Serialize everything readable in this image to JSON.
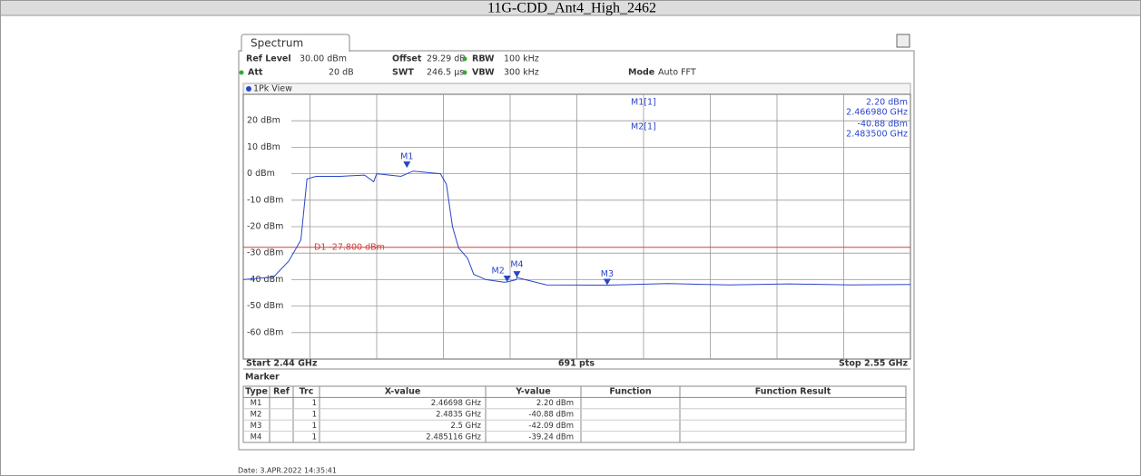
{
  "header": {
    "title": "11G-CDD_Ant4_High_2462"
  },
  "tab": "Spectrum",
  "settings": [
    {
      "label": "Ref Level",
      "value": "30.00 dBm"
    },
    {
      "label": "Offset",
      "value": "29.29 dB"
    },
    {
      "label": "RBW",
      "value": "100 kHz"
    },
    {
      "label": "Att",
      "value": "20 dB"
    },
    {
      "label": "SWT",
      "value": "246.5 µs"
    },
    {
      "label": "VBW",
      "value": "300 kHz"
    },
    {
      "label": "Mode",
      "value": "Auto FFT"
    }
  ],
  "view": "1Pk View",
  "readout": [
    {
      "name": "M1[1]",
      "level": "2.20 dBm",
      "freq": "2.466980 GHz"
    },
    {
      "name": "M2[1]",
      "level": "-40.88 dBm",
      "freq": "2.483500 GHz"
    }
  ],
  "chart_data": {
    "type": "line",
    "xlim": [
      2.44,
      2.55
    ],
    "ylim": [
      -70,
      30
    ],
    "yticks": [
      {
        "value": 20,
        "label": "20 dBm"
      },
      {
        "value": 10,
        "label": "10 dBm"
      },
      {
        "value": 0,
        "label": "0 dBm"
      },
      {
        "value": -10,
        "label": "-10 dBm"
      },
      {
        "value": -20,
        "label": "-20 dBm"
      },
      {
        "value": -30,
        "label": "-30 dBm"
      },
      {
        "value": -40,
        "label": "-40 dBm"
      },
      {
        "value": -50,
        "label": "-50 dBm"
      },
      {
        "value": -60,
        "label": "-60 dBm"
      }
    ],
    "grid": true,
    "series": [
      {
        "color": "#2a45c8",
        "x": [
          2.44,
          2.445,
          2.4475,
          2.4495,
          2.4505,
          2.452,
          2.456,
          2.46,
          2.4615,
          2.462,
          2.466,
          2.468,
          2.4725,
          2.4735,
          2.4745,
          2.4755,
          2.477,
          2.478,
          2.48,
          2.483,
          2.4835,
          2.485,
          2.4851,
          2.49,
          2.5,
          2.51,
          2.52,
          2.53,
          2.54,
          2.55
        ],
        "values": [
          -40,
          -39,
          -33,
          -25,
          -2,
          -1,
          -1,
          -0.5,
          -3,
          0,
          -1,
          1,
          0,
          -4,
          -20,
          -28,
          -32,
          -38,
          -40,
          -41,
          -40.9,
          -40,
          -39.2,
          -42,
          -42.1,
          -41.5,
          -42,
          -41.6,
          -42,
          -41.8
        ]
      }
    ],
    "display_line": {
      "label": "D1 -27.800 dBm",
      "value": -27.8,
      "color": "#d04040"
    },
    "markers": [
      {
        "name": "M1",
        "x": 2.46698,
        "y": 2.2
      },
      {
        "name": "M2",
        "x": 2.4835,
        "y": -40.88
      },
      {
        "name": "M3",
        "x": 2.5,
        "y": -42.09
      },
      {
        "name": "M4",
        "x": 2.485116,
        "y": -39.24
      }
    ],
    "start": "Start 2.44 GHz",
    "points": "691 pts",
    "stop": "Stop 2.55 GHz"
  },
  "marker_table": {
    "title": "Marker",
    "columns": [
      "Type",
      "Ref",
      "Trc",
      "X-value",
      "Y-value",
      "Function",
      "Function Result"
    ],
    "rows": [
      [
        "M1",
        "1",
        "2.46698 GHz",
        "2.20 dBm"
      ],
      [
        "M2",
        "1",
        "2.4835 GHz",
        "-40.88 dBm"
      ],
      [
        "M3",
        "1",
        "2.5 GHz",
        "-42.09 dBm"
      ],
      [
        "M4",
        "1",
        "2.485116 GHz",
        "-39.24 dBm"
      ]
    ]
  },
  "date": "Date: 3.APR.2022  14:35:41"
}
